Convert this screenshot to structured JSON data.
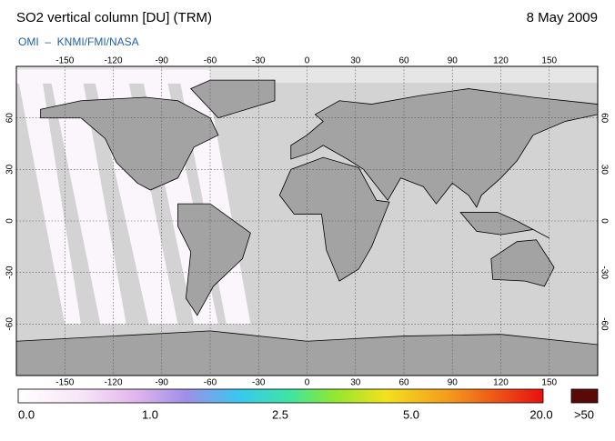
{
  "header": {
    "title": "SO2 vertical column [DU] (TRM)",
    "date": "8 May 2009",
    "credit": "OMI  –  KNMI/FMI/NASA"
  },
  "map": {
    "lon_ticks": [
      -150,
      -120,
      -90,
      -60,
      -30,
      0,
      30,
      60,
      90,
      120,
      150
    ],
    "lat_ticks": [
      60,
      30,
      0,
      -30,
      -60
    ]
  },
  "colorbar": {
    "labels": [
      "0.0",
      "1.0",
      "2.5",
      "5.0",
      "20.0",
      ">50"
    ]
  }
}
